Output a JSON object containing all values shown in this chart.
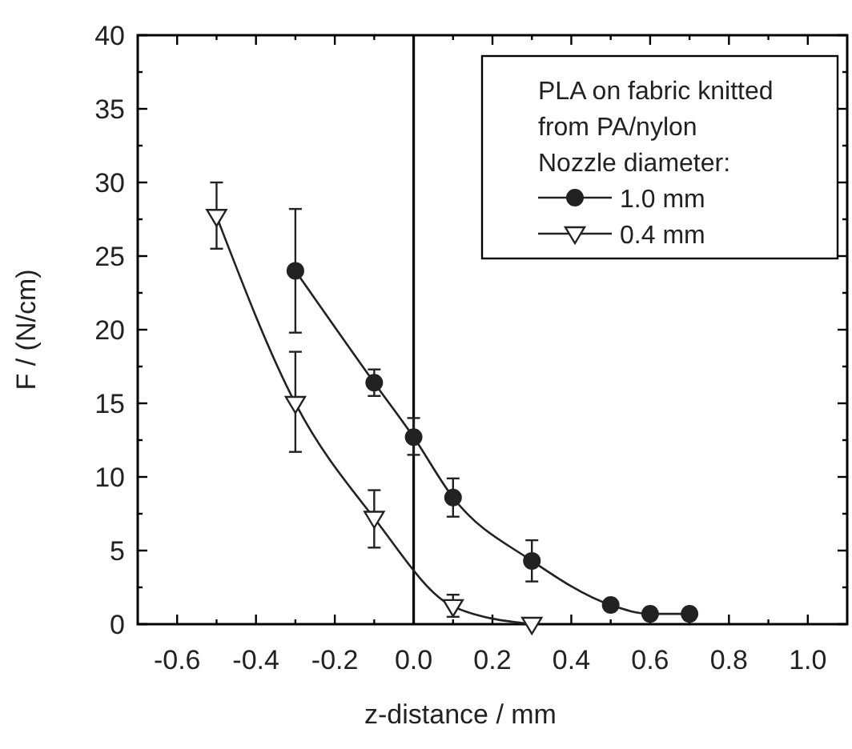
{
  "chart_data": {
    "type": "line",
    "xlabel": "z-distance / mm",
    "ylabel": "F / (N/cm)",
    "legend_title": "PLA on fabric knitted\nfrom PA/nylon\nNozzle diameter:",
    "legend": "top right",
    "xlim": [
      -0.7,
      1.1
    ],
    "ylim": [
      0,
      40
    ],
    "xticks": [
      {
        "value": -0.6,
        "label": "-0.6"
      },
      {
        "value": -0.4,
        "label": "-0.4"
      },
      {
        "value": -0.2,
        "label": "-0.2"
      },
      {
        "value": 0,
        "label": "0.0"
      },
      {
        "value": 0.2,
        "label": "0.2"
      },
      {
        "value": 0.4,
        "label": "0.4"
      },
      {
        "value": 0.6,
        "label": "0.6"
      },
      {
        "value": 0.8,
        "label": "0.8"
      },
      {
        "value": 1,
        "label": "1.0"
      }
    ],
    "yticks": [
      0,
      5,
      10,
      15,
      20,
      25,
      30,
      35,
      40
    ],
    "grid": false,
    "line_style": "solid",
    "ref_lines": [
      {
        "axis": "x",
        "value": 0,
        "color": "#000000"
      }
    ],
    "series": [
      {
        "name": "1.0 mm",
        "color": "#222222",
        "marker": "circle",
        "x": [
          -0.3,
          -0.1,
          0,
          0.1,
          0.3,
          0.5,
          0.6,
          0.7
        ],
        "values": [
          24,
          16.4,
          12.7,
          8.6,
          4.3,
          1.3,
          0.7,
          0.7
        ],
        "errors": [
          [
            19.8,
            28.2
          ],
          [
            15.5,
            17.3
          ],
          [
            11.5,
            14
          ],
          [
            7.3,
            9.9
          ],
          [
            2.9,
            5.7
          ],
          null,
          null,
          null
        ]
      },
      {
        "name": "0.4 mm",
        "color": "#222222",
        "marker": "triangle",
        "x": [
          -0.5,
          -0.3,
          -0.1,
          0.1,
          0.3
        ],
        "values": [
          27.7,
          15,
          7.2,
          1.2,
          0
        ],
        "errors": [
          [
            25.5,
            30
          ],
          [
            11.7,
            18.5
          ],
          [
            5.2,
            9.1
          ],
          [
            0.5,
            2
          ],
          null
        ]
      }
    ]
  }
}
